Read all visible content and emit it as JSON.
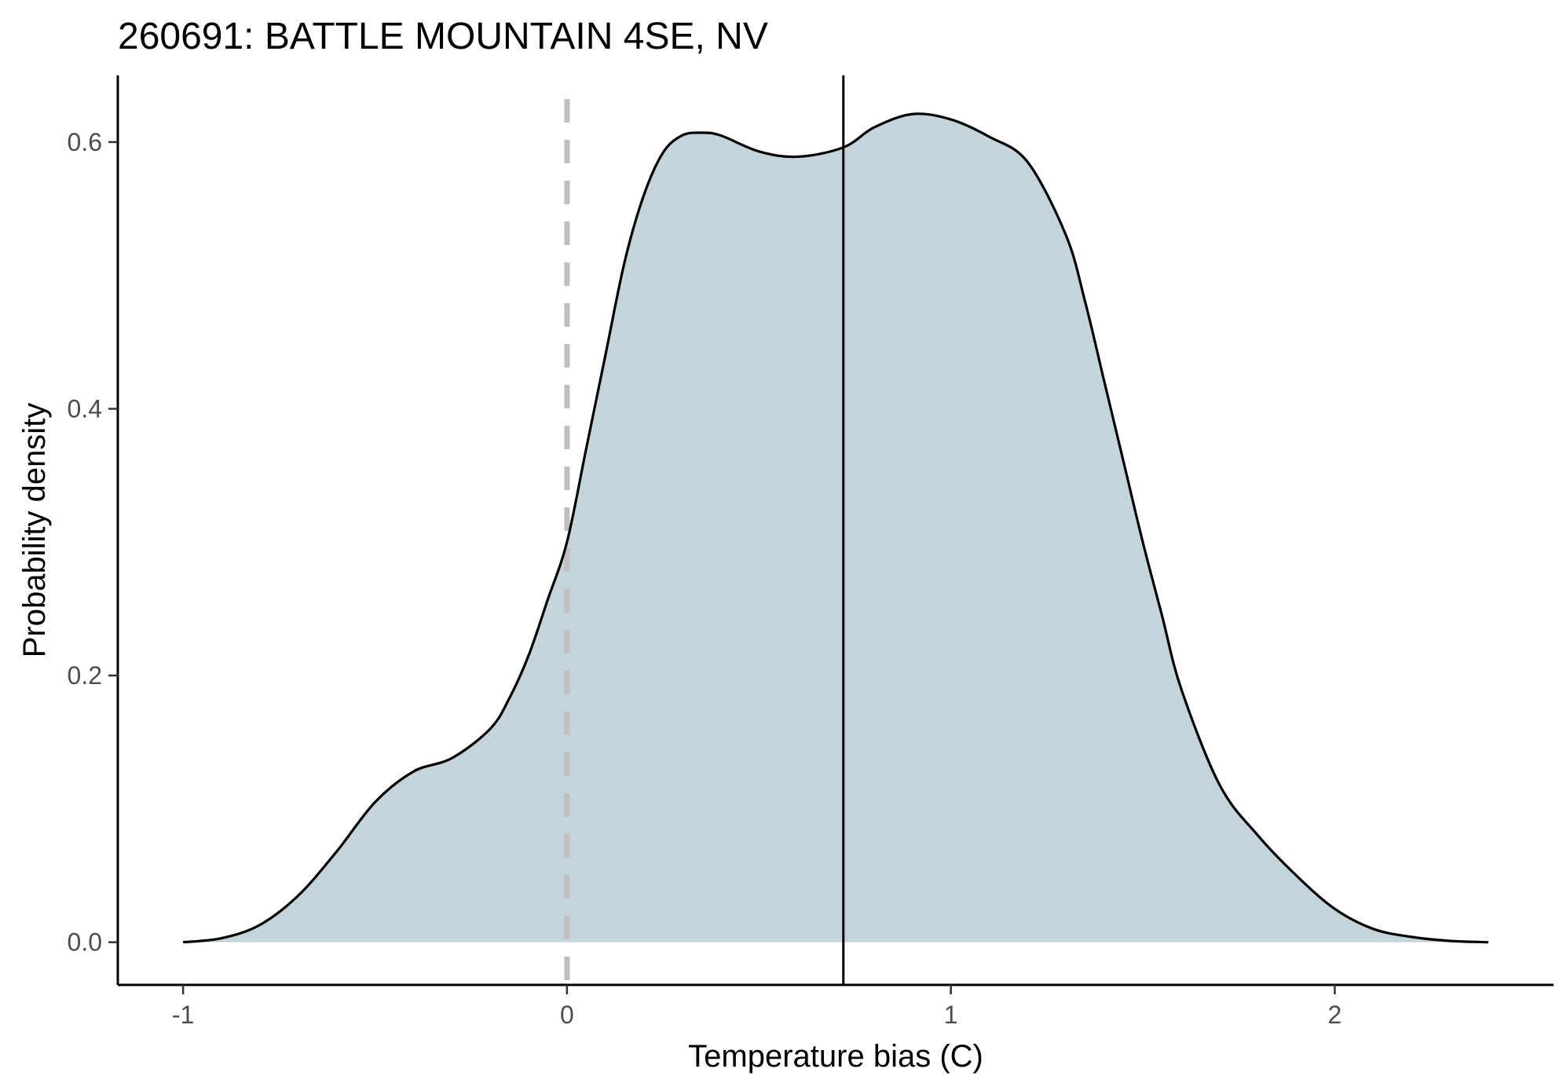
{
  "chart_data": {
    "type": "area",
    "title": "260691: BATTLE MOUNTAIN 4SE, NV",
    "xlabel": "Temperature bias (C)",
    "ylabel": "Probability density",
    "xlim": [
      -1.17,
      2.57
    ],
    "ylim": [
      -0.032,
      0.65
    ],
    "x_ticks": [
      -1,
      0,
      1,
      2
    ],
    "x_tick_labels": [
      "-1",
      "0",
      "1",
      "2"
    ],
    "y_ticks": [
      0.0,
      0.2,
      0.4,
      0.6
    ],
    "y_tick_labels": [
      "0.0",
      "0.2",
      "0.4",
      "0.6"
    ],
    "grid": false,
    "legend": "none",
    "fill_color": "#c3d4da",
    "line_color": "#000000",
    "reference_line": {
      "x": 0,
      "style": "dashed",
      "color": "#bfbfbf"
    },
    "mean_line": {
      "x": 0.72,
      "style": "solid",
      "color": "#000000"
    },
    "series": [
      {
        "name": "density",
        "x": [
          -1.0,
          -0.9,
          -0.8,
          -0.7,
          -0.6,
          -0.5,
          -0.4,
          -0.3,
          -0.2,
          -0.15,
          -0.1,
          -0.05,
          0.0,
          0.05,
          0.1,
          0.15,
          0.2,
          0.25,
          0.3,
          0.35,
          0.4,
          0.5,
          0.6,
          0.72,
          0.8,
          0.9,
          1.0,
          1.1,
          1.2,
          1.3,
          1.35,
          1.4,
          1.45,
          1.5,
          1.55,
          1.6,
          1.7,
          1.8,
          1.9,
          2.0,
          2.1,
          2.2,
          2.3,
          2.4
        ],
        "y": [
          0.0,
          0.003,
          0.013,
          0.035,
          0.068,
          0.105,
          0.128,
          0.138,
          0.16,
          0.183,
          0.215,
          0.257,
          0.3,
          0.37,
          0.44,
          0.51,
          0.56,
          0.592,
          0.605,
          0.607,
          0.605,
          0.593,
          0.589,
          0.596,
          0.611,
          0.621,
          0.617,
          0.604,
          0.585,
          0.53,
          0.48,
          0.42,
          0.36,
          0.3,
          0.245,
          0.19,
          0.118,
          0.08,
          0.05,
          0.025,
          0.01,
          0.004,
          0.001,
          0.0
        ]
      }
    ]
  }
}
